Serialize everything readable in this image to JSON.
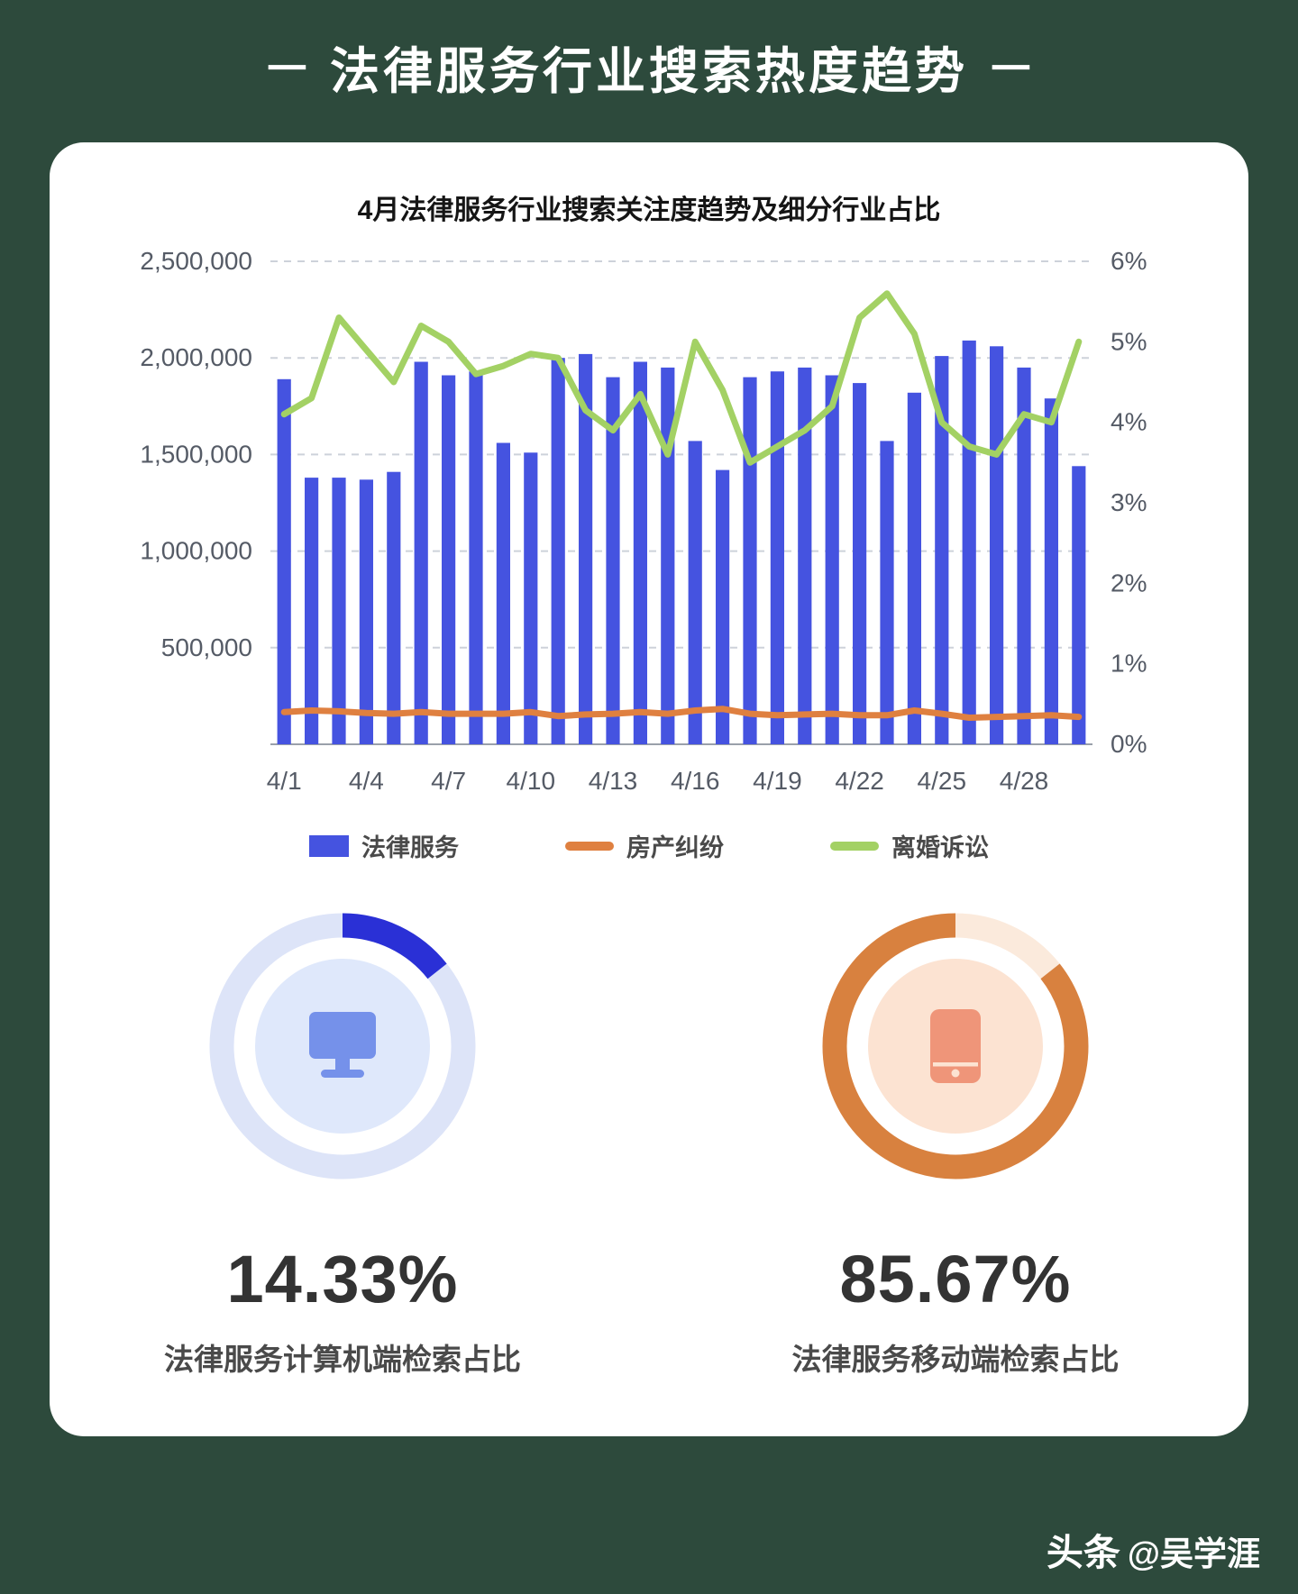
{
  "page": {
    "title": "法律服务行业搜索热度趋势",
    "title_dash_left": "−",
    "title_dash_right": "−",
    "watermark_bold": "头条",
    "watermark_rest": "@吴学涯"
  },
  "chart_data": {
    "type": "combo-bar-line",
    "title": "4月法律服务行业搜索关注度趋势及细分行业占比",
    "categories": [
      "4/1",
      "4/2",
      "4/3",
      "4/4",
      "4/5",
      "4/6",
      "4/7",
      "4/8",
      "4/9",
      "4/10",
      "4/11",
      "4/12",
      "4/13",
      "4/14",
      "4/15",
      "4/16",
      "4/17",
      "4/18",
      "4/19",
      "4/20",
      "4/21",
      "4/22",
      "4/23",
      "4/24",
      "4/25",
      "4/26",
      "4/27",
      "4/28",
      "4/29",
      "4/30"
    ],
    "x_tick_labels": [
      "4/1",
      "4/4",
      "4/7",
      "4/10",
      "4/13",
      "4/16",
      "4/19",
      "4/22",
      "4/25",
      "4/28"
    ],
    "series": [
      {
        "name": "法律服务",
        "type": "bar",
        "axis": "left",
        "color": "#4553e0",
        "values": [
          1890000,
          1380000,
          1380000,
          1370000,
          1410000,
          1980000,
          1910000,
          1930000,
          1560000,
          1510000,
          2000000,
          2020000,
          1900000,
          1980000,
          1950000,
          1570000,
          1420000,
          1900000,
          1930000,
          1950000,
          1910000,
          1870000,
          1570000,
          1820000,
          2010000,
          2090000,
          2060000,
          1950000,
          1790000,
          1440000
        ]
      },
      {
        "name": "房产纠纷",
        "type": "line",
        "axis": "right",
        "color": "#df8040",
        "values": [
          0.4,
          0.42,
          0.41,
          0.39,
          0.38,
          0.4,
          0.38,
          0.38,
          0.38,
          0.4,
          0.35,
          0.37,
          0.38,
          0.4,
          0.38,
          0.42,
          0.44,
          0.38,
          0.36,
          0.37,
          0.38,
          0.36,
          0.36,
          0.42,
          0.38,
          0.33,
          0.34,
          0.35,
          0.36,
          0.34
        ]
      },
      {
        "name": "离婚诉讼",
        "type": "line",
        "axis": "right",
        "color": "#a3d164",
        "values": [
          4.1,
          4.3,
          5.3,
          4.9,
          4.5,
          5.2,
          5.0,
          4.6,
          4.7,
          4.85,
          4.8,
          4.15,
          3.9,
          4.35,
          3.6,
          5.0,
          4.4,
          3.5,
          3.7,
          3.9,
          4.2,
          5.3,
          5.6,
          5.1,
          4.0,
          3.7,
          3.6,
          4.1,
          4.0,
          5.0
        ]
      }
    ],
    "left_axis": {
      "min": 0,
      "max": 2500000,
      "step": 500000,
      "tick_labels": [
        "2,500,000",
        "2,000,000",
        "1,500,000",
        "1,000,000",
        "500,000"
      ]
    },
    "right_axis": {
      "min": 0,
      "max": 6,
      "step": 1,
      "tick_labels": [
        "6%",
        "5%",
        "4%",
        "3%",
        "2%",
        "1%",
        "0%"
      ]
    },
    "grid": "dashed-horizontal",
    "legend_position": "bottom"
  },
  "legend": {
    "items": [
      {
        "key": "legal-services",
        "label": "法律服务",
        "color": "#4553e0",
        "type": "bar"
      },
      {
        "key": "property-dispute",
        "label": "房产纠纷",
        "color": "#df8040",
        "type": "line"
      },
      {
        "key": "divorce-litigation",
        "label": "离婚诉讼",
        "color": "#a3d164",
        "type": "line"
      }
    ]
  },
  "donuts": [
    {
      "key": "pc",
      "value_label": "14.33%",
      "percent": 14.33,
      "caption": "法律服务计算机端检索占比",
      "ring_color": "#2a30d6",
      "track_color": "#dde4f8",
      "inner_color": "#dfe8fb",
      "icon": "desktop-computer-icon",
      "icon_color": "#7591ea"
    },
    {
      "key": "mobile",
      "value_label": "85.67%",
      "percent": 85.67,
      "caption": "法律服务移动端检索占比",
      "ring_color": "#d8813f",
      "track_color": "#fbeadc",
      "inner_color": "#fce3d2",
      "icon": "mobile-phone-icon",
      "icon_color": "#ef9579"
    }
  ]
}
